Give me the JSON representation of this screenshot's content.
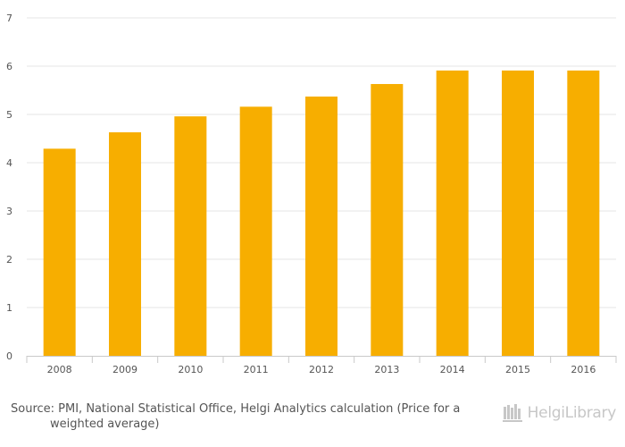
{
  "chart_data": {
    "type": "bar",
    "categories": [
      "2008",
      "2009",
      "2010",
      "2011",
      "2012",
      "2013",
      "2014",
      "2015",
      "2016"
    ],
    "values": [
      4.29,
      4.63,
      4.96,
      5.16,
      5.37,
      5.63,
      5.91,
      5.91,
      5.91
    ],
    "ylim": [
      0,
      7
    ],
    "yticks": [
      0,
      1,
      2,
      3,
      4,
      5,
      6,
      7
    ],
    "grid": true,
    "bar_color": "#f7ae00",
    "grid_color": "#e6e6e6",
    "axis_color": "#c9c9c9",
    "label_color": "#555555"
  },
  "footer": {
    "source": "Source: PMI, National Statistical Office, Helgi Analytics calculation (Price for a weighted average)",
    "logo_text": "HelgiLibrary",
    "logo_icon": "library-books-icon",
    "logo_color": "#c7c7c7"
  }
}
